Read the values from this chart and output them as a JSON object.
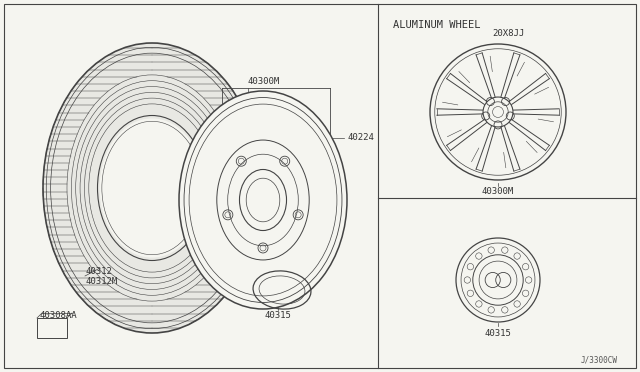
{
  "bg_color": "#f5f5f0",
  "line_color": "#444444",
  "title": "ALUMINUM WHEEL",
  "label_20x8jj": "20X8JJ",
  "label_40300M": "40300M",
  "label_40224": "40224",
  "label_40312": "40312",
  "label_40312M": "40312M",
  "label_40315": "40315",
  "label_40308AA": "40308AA",
  "label_diagram_id": "J/3300CW",
  "font_size_label": 6.5,
  "font_size_title": 7.5
}
